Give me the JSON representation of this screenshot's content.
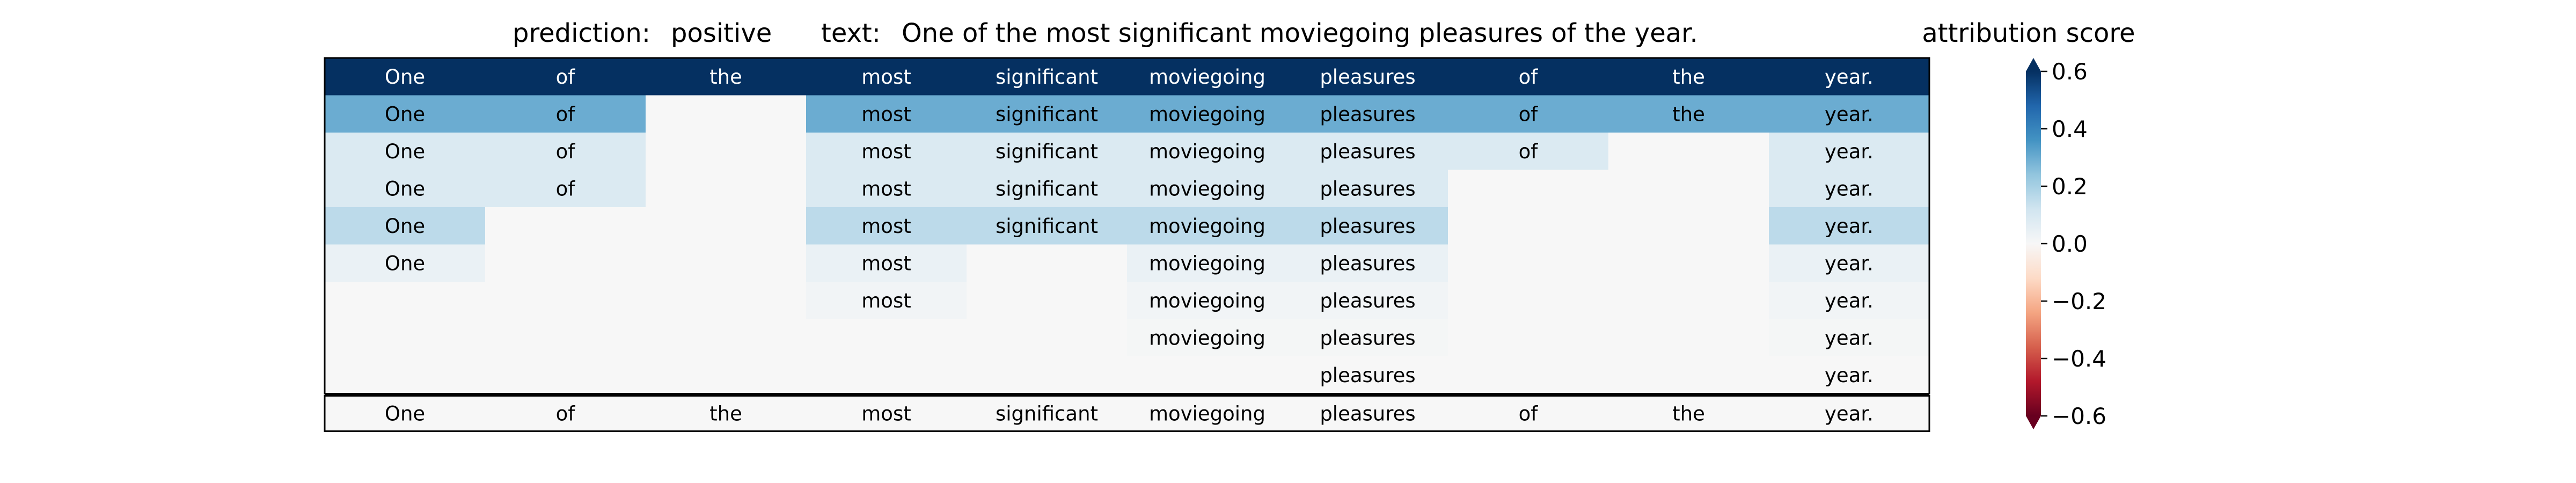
{
  "chart_data": {
    "type": "heatmap",
    "prediction_label": "prediction:",
    "prediction_value": "positive",
    "text_label": "text:",
    "text_value": "One of the most significant moviegoing pleasures of the year.",
    "colorbar_title": "attribution score",
    "colorbar_ticks": [
      "0.6",
      "0.4",
      "0.2",
      "0.0",
      "−0.2",
      "−0.4",
      "−0.6"
    ],
    "colorbar_tick_values": [
      0.6,
      0.4,
      0.2,
      0.0,
      -0.2,
      -0.4,
      -0.6
    ],
    "vmin": -0.6,
    "vmax": 0.6,
    "colorbar_extend": "both",
    "tokens": [
      "One",
      "of",
      "the",
      "most",
      "significant",
      "moviegoing",
      "pleasures",
      "of",
      "the",
      "year."
    ],
    "rows": [
      {
        "cells": [
          {
            "text": "One",
            "value": 0.62
          },
          {
            "text": "of",
            "value": 0.62
          },
          {
            "text": "the",
            "value": 0.62
          },
          {
            "text": "most",
            "value": 0.62
          },
          {
            "text": "significant",
            "value": 0.62
          },
          {
            "text": "moviegoing",
            "value": 0.62
          },
          {
            "text": "pleasures",
            "value": 0.62
          },
          {
            "text": "of",
            "value": 0.62
          },
          {
            "text": "the",
            "value": 0.62
          },
          {
            "text": "year.",
            "value": 0.62
          }
        ]
      },
      {
        "cells": [
          {
            "text": "One",
            "value": 0.3
          },
          {
            "text": "of",
            "value": 0.3
          },
          {
            "text": "",
            "value": 0.0
          },
          {
            "text": "most",
            "value": 0.3
          },
          {
            "text": "significant",
            "value": 0.3
          },
          {
            "text": "moviegoing",
            "value": 0.3
          },
          {
            "text": "pleasures",
            "value": 0.3
          },
          {
            "text": "of",
            "value": 0.3
          },
          {
            "text": "the",
            "value": 0.3
          },
          {
            "text": "year.",
            "value": 0.3
          }
        ]
      },
      {
        "cells": [
          {
            "text": "One",
            "value": 0.09
          },
          {
            "text": "of",
            "value": 0.09
          },
          {
            "text": "",
            "value": 0.0
          },
          {
            "text": "most",
            "value": 0.09
          },
          {
            "text": "significant",
            "value": 0.09
          },
          {
            "text": "moviegoing",
            "value": 0.09
          },
          {
            "text": "pleasures",
            "value": 0.09
          },
          {
            "text": "of",
            "value": 0.09
          },
          {
            "text": "",
            "value": 0.0
          },
          {
            "text": "year.",
            "value": 0.09
          }
        ]
      },
      {
        "cells": [
          {
            "text": "One",
            "value": 0.09
          },
          {
            "text": "of",
            "value": 0.09
          },
          {
            "text": "",
            "value": 0.0
          },
          {
            "text": "most",
            "value": 0.09
          },
          {
            "text": "significant",
            "value": 0.09
          },
          {
            "text": "moviegoing",
            "value": 0.09
          },
          {
            "text": "pleasures",
            "value": 0.09
          },
          {
            "text": "",
            "value": 0.0
          },
          {
            "text": "",
            "value": 0.0
          },
          {
            "text": "year.",
            "value": 0.09
          }
        ]
      },
      {
        "cells": [
          {
            "text": "One",
            "value": 0.16
          },
          {
            "text": "",
            "value": 0.0
          },
          {
            "text": "",
            "value": 0.0
          },
          {
            "text": "most",
            "value": 0.16
          },
          {
            "text": "significant",
            "value": 0.16
          },
          {
            "text": "moviegoing",
            "value": 0.16
          },
          {
            "text": "pleasures",
            "value": 0.16
          },
          {
            "text": "",
            "value": 0.0
          },
          {
            "text": "",
            "value": 0.0
          },
          {
            "text": "year.",
            "value": 0.16
          }
        ]
      },
      {
        "cells": [
          {
            "text": "One",
            "value": 0.04
          },
          {
            "text": "",
            "value": 0.0
          },
          {
            "text": "",
            "value": 0.0
          },
          {
            "text": "most",
            "value": 0.04
          },
          {
            "text": "",
            "value": 0.0
          },
          {
            "text": "moviegoing",
            "value": 0.04
          },
          {
            "text": "pleasures",
            "value": 0.04
          },
          {
            "text": "",
            "value": 0.0
          },
          {
            "text": "",
            "value": 0.0
          },
          {
            "text": "year.",
            "value": 0.04
          }
        ]
      },
      {
        "cells": [
          {
            "text": "",
            "value": 0.0
          },
          {
            "text": "",
            "value": 0.0
          },
          {
            "text": "",
            "value": 0.0
          },
          {
            "text": "most",
            "value": 0.02
          },
          {
            "text": "",
            "value": 0.0
          },
          {
            "text": "moviegoing",
            "value": 0.02
          },
          {
            "text": "pleasures",
            "value": 0.02
          },
          {
            "text": "",
            "value": 0.0
          },
          {
            "text": "",
            "value": 0.0
          },
          {
            "text": "year.",
            "value": 0.02
          }
        ]
      },
      {
        "cells": [
          {
            "text": "",
            "value": 0.0
          },
          {
            "text": "",
            "value": 0.0
          },
          {
            "text": "",
            "value": 0.0
          },
          {
            "text": "",
            "value": 0.0
          },
          {
            "text": "",
            "value": 0.0
          },
          {
            "text": "moviegoing",
            "value": 0.01
          },
          {
            "text": "pleasures",
            "value": 0.01
          },
          {
            "text": "",
            "value": 0.0
          },
          {
            "text": "",
            "value": 0.0
          },
          {
            "text": "year.",
            "value": 0.01
          }
        ]
      },
      {
        "cells": [
          {
            "text": "",
            "value": 0.0
          },
          {
            "text": "",
            "value": 0.0
          },
          {
            "text": "",
            "value": 0.0
          },
          {
            "text": "",
            "value": 0.0
          },
          {
            "text": "",
            "value": 0.0
          },
          {
            "text": "",
            "value": 0.0
          },
          {
            "text": "pleasures",
            "value": 0.0
          },
          {
            "text": "",
            "value": 0.0
          },
          {
            "text": "",
            "value": 0.0
          },
          {
            "text": "year.",
            "value": 0.0
          }
        ]
      }
    ],
    "input_row": {
      "cells": [
        {
          "text": "One",
          "value": 0.0
        },
        {
          "text": "of",
          "value": 0.0
        },
        {
          "text": "the",
          "value": 0.0
        },
        {
          "text": "most",
          "value": 0.0
        },
        {
          "text": "significant",
          "value": 0.0
        },
        {
          "text": "moviegoing",
          "value": 0.0
        },
        {
          "text": "pleasures",
          "value": 0.0
        },
        {
          "text": "of",
          "value": 0.0
        },
        {
          "text": "the",
          "value": 0.0
        },
        {
          "text": "year.",
          "value": 0.0
        }
      ]
    }
  }
}
